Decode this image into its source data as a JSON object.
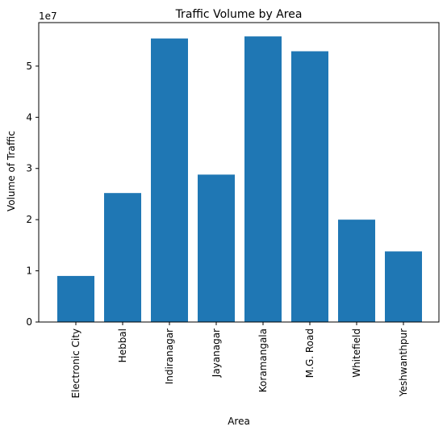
{
  "chart_data": {
    "type": "bar",
    "title": "Traffic Volume by Area",
    "xlabel": "Area",
    "ylabel": "Volume of Traffic",
    "y_offset_label": "1e7",
    "categories": [
      "Electronic City",
      "Hebbal",
      "Indiranagar",
      "Jayanagar",
      "Koramangala",
      "M.G. Road",
      "Whitefield",
      "Yeshwanthpur"
    ],
    "values": [
      9000000,
      25200000,
      55400000,
      28800000,
      55800000,
      52900000,
      20000000,
      13800000
    ],
    "yticks": [
      0,
      1,
      2,
      3,
      4,
      5
    ],
    "ytick_scale": 10000000,
    "ylim": [
      0,
      58500000
    ],
    "grid": false,
    "bar_color": "#1f77b4"
  }
}
